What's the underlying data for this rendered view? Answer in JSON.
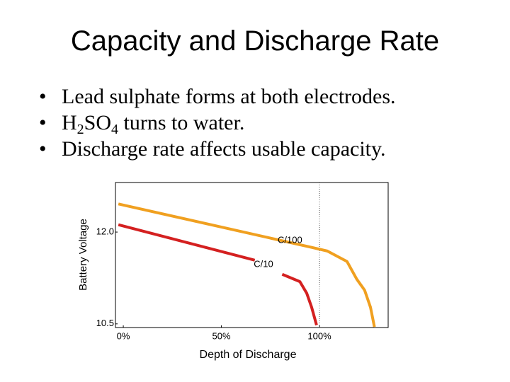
{
  "title": "Capacity and Discharge Rate",
  "bullets": [
    [
      "Lead sulphate forms at both electrodes."
    ],
    [
      "H",
      "2",
      "SO",
      "4",
      " turns to water."
    ],
    [
      "Discharge rate affects usable capacity."
    ]
  ],
  "chart_data": {
    "type": "line",
    "y_label": "Battery Voltage",
    "x_label": "Depth of Discharge",
    "xlim": [
      -4,
      135
    ],
    "ylim": [
      10.44,
      12.81
    ],
    "xticks": [
      {
        "value": 0,
        "label": "0%"
      },
      {
        "value": 50,
        "label": "50%"
      },
      {
        "value": 100,
        "label": "100%"
      }
    ],
    "yticks": [
      {
        "value": 12,
        "label": "12.0"
      },
      {
        "value": 10.5,
        "label": "10.5"
      }
    ],
    "vline": 100,
    "series": [
      {
        "name": "C/100",
        "color": "#f0a020",
        "x": [
          -2.5,
          96,
          104,
          114,
          119,
          123,
          126,
          128
        ],
        "values": [
          12.46,
          11.75,
          11.69,
          11.52,
          11.23,
          11.05,
          10.77,
          10.45
        ]
      },
      {
        "name": "C/10",
        "color": "#d42020",
        "x": [
          -2.5,
          67,
          null,
          81,
          90,
          93.5,
          96,
          98.5
        ],
        "values": [
          12.12,
          11.54,
          null,
          11.31,
          11.19,
          11.0,
          10.77,
          10.48
        ]
      }
    ]
  }
}
